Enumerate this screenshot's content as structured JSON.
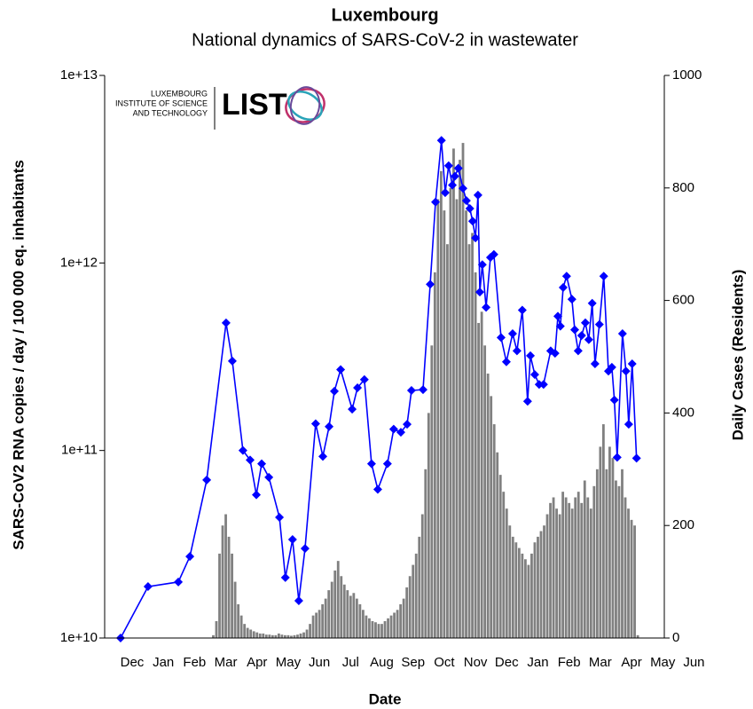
{
  "chart_data": {
    "type": "combo",
    "title": "Luxembourg",
    "subtitle": "National dynamics of SARS-CoV-2 in wastewater",
    "x_label": "Date",
    "y_label": "SARS-CoV2 RNA copies / day  / 100 000 eq. inhabitants",
    "y2_label": "Daily Cases (Residents)",
    "xlim": [
      0.12,
      18.05
    ],
    "xticks": [
      {
        "value": 1,
        "label": "Dec"
      },
      {
        "value": 2,
        "label": "Jan"
      },
      {
        "value": 3,
        "label": "Feb"
      },
      {
        "value": 4,
        "label": "Mar"
      },
      {
        "value": 5,
        "label": "Apr"
      },
      {
        "value": 6,
        "label": "May"
      },
      {
        "value": 7,
        "label": "Jun"
      },
      {
        "value": 8,
        "label": "Jul"
      },
      {
        "value": 9,
        "label": "Aug"
      },
      {
        "value": 10,
        "label": "Sep"
      },
      {
        "value": 11,
        "label": "Oct"
      },
      {
        "value": 12,
        "label": "Nov"
      },
      {
        "value": 13,
        "label": "Dec"
      },
      {
        "value": 14,
        "label": "Jan"
      },
      {
        "value": 15,
        "label": "Feb"
      },
      {
        "value": 16,
        "label": "Mar"
      },
      {
        "value": 17,
        "label": "Apr"
      },
      {
        "value": 18,
        "label": "May"
      },
      {
        "value": 19,
        "label": "Jun"
      }
    ],
    "ylim": [
      10000000000.0,
      10000000000000.0
    ],
    "y_log": true,
    "yticks": [
      {
        "value": 10000000000.0,
        "label": "1e+10"
      },
      {
        "value": 100000000000.0,
        "label": "1e+11"
      },
      {
        "value": 1000000000000.0,
        "label": "1e+12"
      },
      {
        "value": 10000000000000.0,
        "label": "1e+13"
      }
    ],
    "y2lim": [
      0,
      1000
    ],
    "y2ticks": [
      0,
      200,
      400,
      600,
      800,
      1000
    ],
    "series": [
      {
        "type": "bar",
        "axis": "y2",
        "color": "#808080",
        "x": [
          3.6,
          3.7,
          3.8,
          3.9,
          4.0,
          4.1,
          4.2,
          4.3,
          4.4,
          4.5,
          4.6,
          4.7,
          4.8,
          4.9,
          5.0,
          5.1,
          5.2,
          5.3,
          5.4,
          5.5,
          5.6,
          5.7,
          5.8,
          5.9,
          6.0,
          6.1,
          6.2,
          6.3,
          6.4,
          6.5,
          6.6,
          6.7,
          6.8,
          6.9,
          7.0,
          7.1,
          7.2,
          7.3,
          7.4,
          7.5,
          7.6,
          7.7,
          7.8,
          7.9,
          8.0,
          8.1,
          8.2,
          8.3,
          8.4,
          8.5,
          8.6,
          8.7,
          8.8,
          8.9,
          9.0,
          9.1,
          9.2,
          9.3,
          9.4,
          9.5,
          9.6,
          9.7,
          9.8,
          9.9,
          10.0,
          10.1,
          10.2,
          10.3,
          10.4,
          10.5,
          10.6,
          10.7,
          10.8,
          10.9,
          11.0,
          11.1,
          11.2,
          11.3,
          11.4,
          11.5,
          11.6,
          11.7,
          11.8,
          11.9,
          12.0,
          12.1,
          12.2,
          12.3,
          12.4,
          12.5,
          12.6,
          12.7,
          12.8,
          12.9,
          13.0,
          13.1,
          13.2,
          13.3,
          13.4,
          13.5,
          13.6,
          13.7,
          13.8,
          13.9,
          14.0,
          14.1,
          14.2,
          14.3,
          14.4,
          14.5,
          14.6,
          14.7,
          14.8,
          14.9,
          15.0,
          15.1,
          15.2,
          15.3,
          15.4,
          15.5,
          15.6,
          15.7,
          15.8,
          15.9,
          16.0,
          16.1,
          16.2,
          16.3,
          16.4,
          16.5,
          16.6,
          16.7,
          16.8,
          16.9,
          17.0,
          17.1,
          17.2
        ],
        "values": [
          5,
          30,
          150,
          200,
          220,
          180,
          150,
          100,
          60,
          40,
          25,
          18,
          15,
          12,
          10,
          8,
          8,
          6,
          6,
          5,
          5,
          8,
          6,
          5,
          5,
          4,
          5,
          6,
          8,
          10,
          15,
          25,
          40,
          45,
          50,
          60,
          70,
          85,
          100,
          120,
          137,
          110,
          95,
          85,
          75,
          80,
          70,
          60,
          50,
          40,
          35,
          30,
          28,
          25,
          25,
          30,
          35,
          40,
          45,
          50,
          60,
          70,
          90,
          110,
          130,
          150,
          180,
          220,
          300,
          400,
          520,
          650,
          780,
          830,
          760,
          700,
          800,
          870,
          780,
          850,
          880,
          760,
          700,
          720,
          650,
          560,
          580,
          520,
          470,
          430,
          380,
          330,
          290,
          260,
          230,
          200,
          180,
          170,
          160,
          150,
          140,
          130,
          150,
          170,
          180,
          190,
          200,
          220,
          240,
          250,
          230,
          220,
          260,
          250,
          240,
          230,
          250,
          260,
          240,
          280,
          250,
          230,
          270,
          300,
          340,
          380,
          300,
          340,
          320,
          280,
          270,
          300,
          250,
          230,
          210,
          200,
          5
        ]
      },
      {
        "type": "line",
        "axis": "y",
        "color": "#0000ff",
        "x": [
          0.63,
          1.51,
          2.48,
          2.85,
          3.39,
          4.01,
          4.21,
          4.55,
          4.78,
          4.98,
          5.15,
          5.38,
          5.72,
          5.91,
          6.14,
          6.34,
          6.54,
          6.88,
          7.11,
          7.31,
          7.48,
          7.68,
          8.05,
          8.22,
          8.44,
          8.67,
          8.87,
          9.18,
          9.38,
          9.61,
          9.81,
          9.95,
          10.32,
          10.55,
          10.72,
          10.91,
          11.03,
          11.14,
          11.26,
          11.34,
          11.45,
          11.6,
          11.71,
          11.82,
          11.91,
          12.0,
          12.08,
          12.14,
          12.22,
          12.34,
          12.48,
          12.59,
          12.82,
          12.99,
          13.19,
          13.33,
          13.5,
          13.67,
          13.76,
          13.9,
          14.04,
          14.18,
          14.41,
          14.55,
          14.64,
          14.72,
          14.81,
          14.92,
          15.09,
          15.18,
          15.29,
          15.4,
          15.52,
          15.63,
          15.74,
          15.83,
          15.97,
          16.11,
          16.26,
          16.37,
          16.45,
          16.54,
          16.71,
          16.82,
          16.91,
          17.02,
          17.16
        ],
        "values": [
          10000000000.0,
          18800000000.0,
          19900000000.0,
          27200000000.0,
          69600000000.0,
          479000000000.0,
          300000000000.0,
          100000000000.0,
          89000000000.0,
          58000000000.0,
          85000000000.0,
          72000000000.0,
          44000000000.0,
          21000000000.0,
          33500000000.0,
          15800000000.0,
          30000000000.0,
          139000000000.0,
          93000000000.0,
          134000000000.0,
          207000000000.0,
          270000000000.0,
          166000000000.0,
          216000000000.0,
          239000000000.0,
          85000000000.0,
          62000000000.0,
          85000000000.0,
          130000000000.0,
          125000000000.0,
          138000000000.0,
          209000000000.0,
          211000000000.0,
          770000000000.0,
          2110000000000.0,
          4500000000000.0,
          2370000000000.0,
          3300000000000.0,
          2600000000000.0,
          2900000000000.0,
          3200000000000.0,
          2500000000000.0,
          2150000000000.0,
          1950000000000.0,
          1670000000000.0,
          1360000000000.0,
          2300000000000.0,
          700000000000.0,
          980000000000.0,
          580000000000.0,
          1070000000000.0,
          1110000000000.0,
          400000000000.0,
          297000000000.0,
          420000000000.0,
          340000000000.0,
          560000000000.0,
          183000000000.0,
          320000000000.0,
          254000000000.0,
          225000000000.0,
          225000000000.0,
          340000000000.0,
          330000000000.0,
          520000000000.0,
          460000000000.0,
          740000000000.0,
          850000000000.0,
          640000000000.0,
          440000000000.0,
          340000000000.0,
          410000000000.0,
          480000000000.0,
          390000000000.0,
          610000000000.0,
          290000000000.0,
          470000000000.0,
          850000000000.0,
          265000000000.0,
          278000000000.0,
          186000000000.0,
          92000000000.0,
          420000000000.0,
          265000000000.0,
          138000000000.0,
          290000000000.0,
          91000000000.0
        ]
      }
    ]
  },
  "logo": {
    "line1": "LUXEMBOURG",
    "line2": "INSTITUTE OF SCIENCE",
    "line3": "AND TECHNOLOGY",
    "mark": "LIST"
  }
}
